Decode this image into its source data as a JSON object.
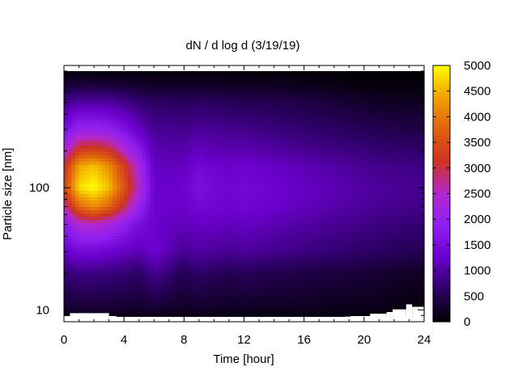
{
  "chart_data": {
    "type": "heatmap",
    "title": "dN / d log d (3/19/19)",
    "xlabel": "Time [hour]",
    "ylabel": "Particle size [nm]",
    "xlim": [
      0,
      24
    ],
    "ylim": [
      8,
      1000
    ],
    "y_scale": "log",
    "x_ticks": [
      0,
      4,
      8,
      12,
      16,
      20,
      24
    ],
    "y_ticks": [
      10,
      100
    ],
    "colorbar": {
      "label": "",
      "range": [
        0,
        5000
      ],
      "ticks": [
        0,
        500,
        1000,
        1500,
        2000,
        2500,
        3000,
        3500,
        4000,
        4500,
        5000
      ],
      "palette": [
        "#000000",
        "#2d0066",
        "#6a00cc",
        "#8f1ff0",
        "#b327d0",
        "#cc3322",
        "#e06010",
        "#f0a000",
        "#ffff00"
      ]
    },
    "time_hours": [
      0,
      1,
      2,
      3,
      4,
      5,
      6,
      7,
      8,
      9,
      10,
      11,
      12,
      13,
      14,
      15,
      16,
      17,
      18,
      19,
      20,
      21,
      22,
      23,
      24
    ],
    "diameter_nm": [
      9,
      10,
      20,
      30,
      50,
      70,
      100,
      150,
      200,
      300,
      500,
      700,
      900
    ],
    "values": [
      [
        100,
        250,
        700,
        1200,
        1800,
        2600,
        3300,
        3000,
        2300,
        1500,
        800,
        300,
        80
      ],
      [
        100,
        300,
        800,
        1400,
        2400,
        3800,
        4800,
        4400,
        3300,
        2000,
        1000,
        350,
        80
      ],
      [
        100,
        300,
        800,
        1400,
        2500,
        4200,
        5000,
        4600,
        3400,
        2000,
        1000,
        350,
        80
      ],
      [
        100,
        300,
        750,
        1300,
        2300,
        3800,
        4600,
        4200,
        3200,
        1900,
        950,
        330,
        80
      ],
      [
        100,
        280,
        700,
        1200,
        1900,
        3000,
        3600,
        3300,
        2500,
        1600,
        850,
        300,
        80
      ],
      [
        100,
        250,
        600,
        1100,
        1500,
        2000,
        2500,
        2300,
        1800,
        1200,
        700,
        250,
        80
      ],
      [
        100,
        300,
        900,
        1300,
        1300,
        1300,
        1300,
        1200,
        1100,
        900,
        600,
        230,
        70
      ],
      [
        100,
        250,
        700,
        1100,
        1200,
        1250,
        1250,
        1150,
        1050,
        900,
        600,
        220,
        70
      ],
      [
        100,
        200,
        500,
        900,
        1150,
        1250,
        1300,
        1200,
        1050,
        850,
        550,
        210,
        70
      ],
      [
        100,
        250,
        650,
        1000,
        1200,
        1400,
        1550,
        1400,
        1200,
        950,
        600,
        220,
        70
      ],
      [
        100,
        220,
        550,
        950,
        1200,
        1350,
        1400,
        1300,
        1100,
        900,
        560,
        210,
        70
      ],
      [
        100,
        200,
        500,
        900,
        1150,
        1300,
        1350,
        1250,
        1100,
        850,
        540,
        200,
        60
      ],
      [
        100,
        200,
        550,
        950,
        1200,
        1350,
        1400,
        1300,
        1100,
        850,
        520,
        200,
        60
      ],
      [
        100,
        200,
        500,
        900,
        1150,
        1300,
        1350,
        1250,
        1050,
        800,
        500,
        190,
        60
      ],
      [
        100,
        200,
        480,
        850,
        1100,
        1250,
        1300,
        1200,
        1000,
        760,
        470,
        180,
        60
      ],
      [
        100,
        190,
        450,
        820,
        1050,
        1200,
        1250,
        1150,
        950,
        720,
        450,
        170,
        50
      ],
      [
        100,
        180,
        430,
        780,
        1000,
        1150,
        1200,
        1100,
        900,
        680,
        420,
        160,
        50
      ],
      [
        100,
        170,
        400,
        740,
        950,
        1100,
        1150,
        1050,
        860,
        640,
        380,
        140,
        40
      ],
      [
        100,
        160,
        380,
        700,
        900,
        1050,
        1100,
        1000,
        820,
        600,
        340,
        120,
        30
      ],
      [
        100,
        150,
        360,
        660,
        860,
        1000,
        1050,
        950,
        780,
        560,
        300,
        100,
        20
      ],
      [
        100,
        140,
        340,
        620,
        820,
        950,
        1000,
        900,
        740,
        520,
        260,
        80,
        10
      ],
      [
        80,
        130,
        320,
        590,
        780,
        900,
        950,
        860,
        700,
        480,
        230,
        70,
        10
      ],
      [
        60,
        100,
        280,
        550,
        750,
        880,
        920,
        830,
        680,
        460,
        220,
        60,
        10
      ],
      [
        40,
        80,
        250,
        520,
        720,
        850,
        900,
        810,
        660,
        440,
        210,
        60,
        10
      ],
      [
        30,
        70,
        230,
        500,
        700,
        830,
        880,
        800,
        650,
        430,
        200,
        50,
        10
      ]
    ],
    "missing_near_floor": [
      {
        "t_start": 0,
        "t_end": 0.4,
        "d_top": 8.9
      },
      {
        "t_start": 0.4,
        "t_end": 3.0,
        "d_top": 9.4
      },
      {
        "t_start": 3.0,
        "t_end": 3.5,
        "d_top": 8.9
      },
      {
        "t_start": 18.7,
        "t_end": 19.1,
        "d_top": 8.8
      },
      {
        "t_start": 19.1,
        "t_end": 20.4,
        "d_top": 8.9
      },
      {
        "t_start": 20.4,
        "t_end": 21.5,
        "d_top": 9.3
      },
      {
        "t_start": 21.5,
        "t_end": 21.9,
        "d_top": 9.6
      },
      {
        "t_start": 21.9,
        "t_end": 22.8,
        "d_top": 10.1
      },
      {
        "t_start": 22.8,
        "t_end": 23.2,
        "d_top": 11.1
      },
      {
        "t_start": 23.2,
        "t_end": 24.0,
        "d_top": 10.6
      }
    ]
  }
}
